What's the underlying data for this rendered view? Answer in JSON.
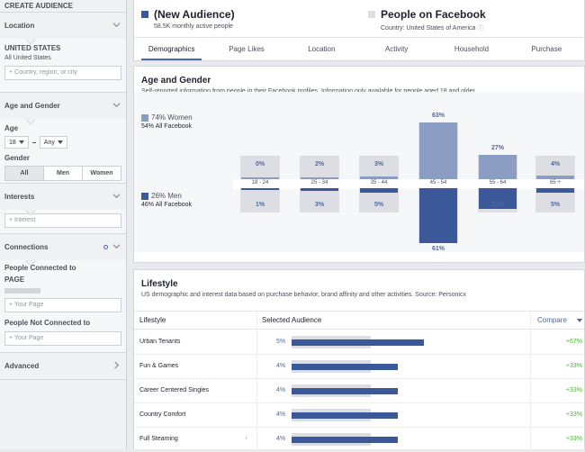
{
  "sidebar": {
    "title": "CREATE AUDIENCE",
    "location": {
      "heading": "Location",
      "country": "UNITED STATES",
      "scope": "All United States",
      "input_placeholder": "+ Country, region, or city"
    },
    "age_gender": {
      "heading": "Age and Gender",
      "age_label": "Age",
      "age_min": "18",
      "age_max": "Any",
      "gender_label": "Gender",
      "gender_options": [
        "All",
        "Men",
        "Women"
      ],
      "gender_selected": "All"
    },
    "interests": {
      "heading": "Interests",
      "input_placeholder": "+ Interest"
    },
    "connections": {
      "heading": "Connections",
      "connected_label": "People Connected to",
      "page_label": "PAGE",
      "connected_placeholder": "+ Your Page",
      "not_connected_label": "People Not Connected to",
      "not_connected_placeholder": "+ Your Page"
    },
    "advanced": {
      "heading": "Advanced"
    }
  },
  "header": {
    "audience_title": "(New Audience)",
    "audience_sub": "58.5K monthly active people",
    "audience_color": "#3b5998",
    "compare_title": "People on Facebook",
    "compare_sub": "Country: United States of America",
    "compare_color": "#dcdee3",
    "tabs": [
      "Demographics",
      "Page Likes",
      "Location",
      "Activity",
      "Household",
      "Purchase"
    ],
    "active_tab": "Demographics"
  },
  "age_gender_card": {
    "title": "Age and Gender",
    "subtitle": "Self-reported information from people in their Facebook profiles. Information only available for people aged 18 and older.",
    "women": {
      "label": "74% Women",
      "sub": "54% All Facebook"
    },
    "men": {
      "label": "26% Men",
      "sub": "46% All Facebook"
    }
  },
  "chart_data": {
    "type": "bar",
    "categories": [
      "18 - 24",
      "25 - 34",
      "35 - 44",
      "45 - 54",
      "55 - 64",
      "65 +"
    ],
    "series": [
      {
        "name": "Women",
        "values": [
          0,
          2,
          3,
          63,
          27,
          4
        ],
        "labels": [
          "0%",
          "2%",
          "3%",
          "63%",
          "27%",
          "4%"
        ],
        "color": "#8b9dc3"
      },
      {
        "name": "Men",
        "values": [
          1,
          3,
          5,
          61,
          23,
          5
        ],
        "labels": [
          "1%",
          "3%",
          "5%",
          "61%",
          "23%",
          "5%"
        ],
        "color": "#3b5998"
      }
    ],
    "comparison_track_color": "#dcdee3"
  },
  "lifestyle": {
    "title": "Lifestyle",
    "subtitle": "US demographic and interest data based on purchase behavior, brand affinity and other activities. Source: Personicx",
    "columns": {
      "name": "Lifestyle",
      "audience": "Selected Audience",
      "compare": "Compare"
    },
    "rows": [
      {
        "name": "Urban Tenants",
        "pct": "5%",
        "value": 5,
        "compare": "+67%",
        "info": ""
      },
      {
        "name": "Fun & Games",
        "pct": "4%",
        "value": 4,
        "compare": "+33%",
        "info": ""
      },
      {
        "name": "Career Centered Singles",
        "pct": "4%",
        "value": 4,
        "compare": "+33%",
        "info": ""
      },
      {
        "name": "Country Comfort",
        "pct": "4%",
        "value": 4,
        "compare": "+33%",
        "info": ""
      },
      {
        "name": "Full Steaming",
        "pct": "4%",
        "value": 4,
        "compare": "+33%",
        "info": "i"
      }
    ],
    "compare_color": "#42b72a"
  }
}
